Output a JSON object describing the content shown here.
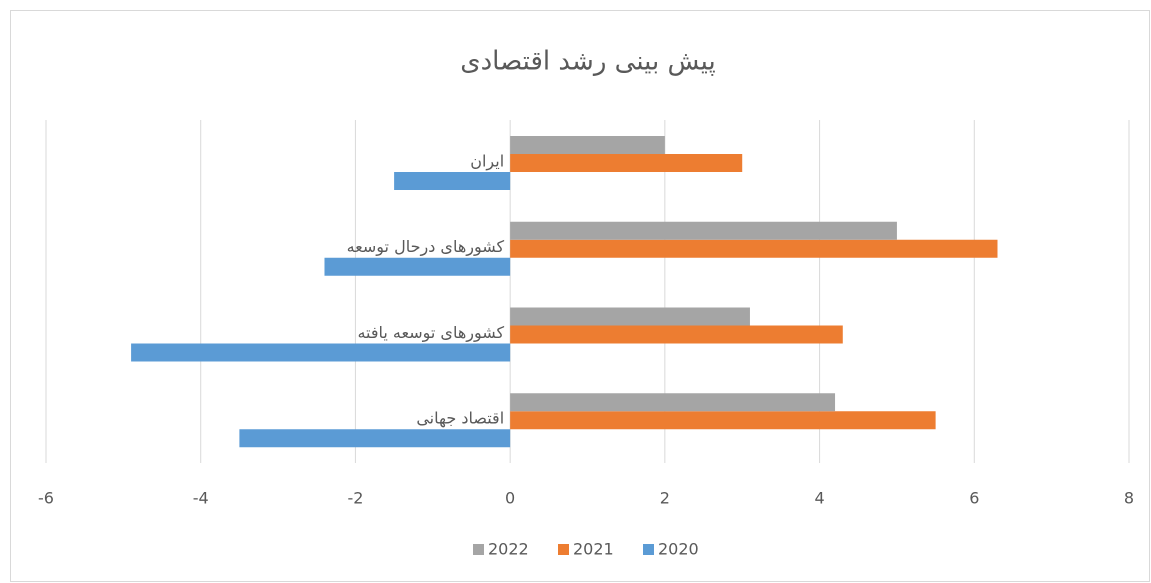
{
  "chart_data": {
    "type": "bar",
    "orientation": "horizontal",
    "title": "پیش بینی رشد اقتصادی",
    "categories": [
      "اقتصاد جهانی",
      "کشورهای توسعه یافته",
      "کشورهای درحال توسعه",
      "ایران"
    ],
    "series": [
      {
        "name": "2020",
        "color": "#5b9bd5",
        "values": [
          -3.5,
          -4.9,
          -2.4,
          -1.5
        ]
      },
      {
        "name": "2021",
        "color": "#ed7d31",
        "values": [
          5.5,
          4.3,
          6.3,
          3.0
        ]
      },
      {
        "name": "2022",
        "color": "#a5a5a5",
        "values": [
          4.2,
          3.1,
          5.0,
          2.0
        ]
      }
    ],
    "xlim": [
      -6,
      8
    ],
    "xticks": [
      -6,
      -4,
      -2,
      0,
      2,
      4,
      6,
      8
    ],
    "grid": true,
    "legend": "bottom"
  }
}
